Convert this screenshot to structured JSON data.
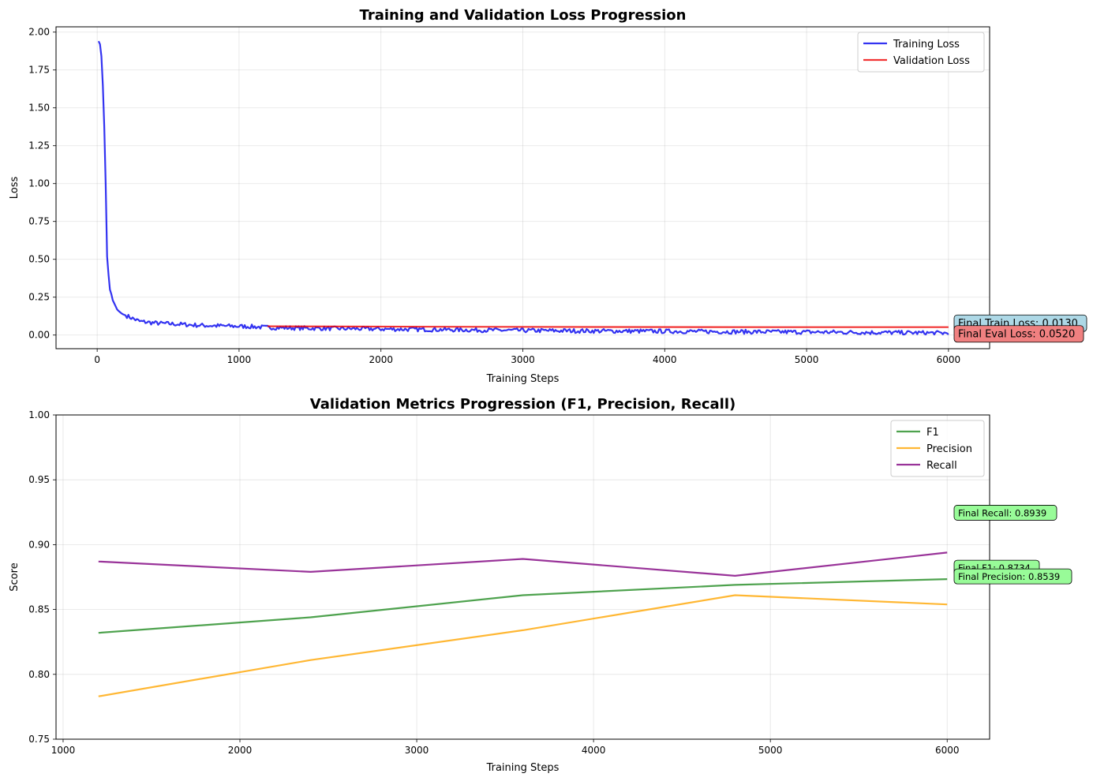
{
  "chart_data": [
    {
      "type": "line",
      "title": "Training and Validation Loss Progression",
      "xlabel": "Training Steps",
      "ylabel": "Loss",
      "xlim": [
        -290,
        6290
      ],
      "ylim": [
        -0.09,
        2.035
      ],
      "xticks": [
        0,
        1000,
        2000,
        3000,
        4000,
        5000,
        6000
      ],
      "xtick_labels": [
        "0",
        "1000",
        "2000",
        "3000",
        "4000",
        "5000",
        "6000"
      ],
      "yticks": [
        0.0,
        0.25,
        0.5,
        0.75,
        1.0,
        1.25,
        1.5,
        1.75,
        2.0
      ],
      "ytick_labels": [
        "0.00",
        "0.25",
        "0.50",
        "0.75",
        "1.00",
        "1.25",
        "1.50",
        "1.75",
        "2.00"
      ],
      "grid": true,
      "legend_position": "top-right",
      "series": [
        {
          "name": "Training Loss",
          "color": "#0000ee",
          "x": [
            10,
            20,
            30,
            40,
            50,
            60,
            70,
            80,
            90,
            100,
            110,
            120,
            130,
            140,
            150,
            175,
            200,
            250,
            300,
            350,
            400,
            500,
            600,
            700,
            800,
            900,
            1000,
            1100,
            1200,
            1500,
            2000,
            2500,
            3000,
            3500,
            4000,
            4500,
            5000,
            5500,
            6000
          ],
          "y": [
            1.94,
            1.92,
            1.84,
            1.65,
            1.38,
            1.0,
            0.52,
            0.4,
            0.3,
            0.27,
            0.23,
            0.21,
            0.19,
            0.17,
            0.16,
            0.14,
            0.13,
            0.11,
            0.09,
            0.085,
            0.08,
            0.075,
            0.07,
            0.065,
            0.062,
            0.06,
            0.058,
            0.055,
            0.05,
            0.045,
            0.04,
            0.035,
            0.03,
            0.027,
            0.025,
            0.022,
            0.02,
            0.017,
            0.013
          ]
        },
        {
          "name": "Validation Loss",
          "color": "#ee0000",
          "x": [
            1200,
            2400,
            3600,
            4800,
            6000
          ],
          "y": [
            0.058,
            0.055,
            0.053,
            0.052,
            0.052
          ]
        }
      ],
      "annotations": [
        {
          "text": "Final Train Loss: 0.0130",
          "bg": "#add8e6"
        },
        {
          "text": "Final Eval Loss: 0.0520",
          "bg": "#f08080"
        }
      ]
    },
    {
      "type": "line",
      "title": "Validation Metrics Progression (F1, Precision, Recall)",
      "xlabel": "Training Steps",
      "ylabel": "Score",
      "xlim": [
        960,
        6240
      ],
      "ylim": [
        0.75,
        1.0
      ],
      "xticks": [
        1000,
        2000,
        3000,
        4000,
        5000,
        6000
      ],
      "xtick_labels": [
        "1000",
        "2000",
        "3000",
        "4000",
        "5000",
        "6000"
      ],
      "yticks": [
        0.75,
        0.8,
        0.85,
        0.9,
        0.95,
        1.0
      ],
      "ytick_labels": [
        "0.75",
        "0.80",
        "0.85",
        "0.90",
        "0.95",
        "1.00"
      ],
      "grid": true,
      "legend_position": "top-right",
      "series": [
        {
          "name": "F1",
          "color": "#228b22",
          "x": [
            1200,
            2400,
            3600,
            4800,
            6000
          ],
          "y": [
            0.832,
            0.844,
            0.861,
            0.869,
            0.8734
          ]
        },
        {
          "name": "Precision",
          "color": "#ffa500",
          "x": [
            1200,
            2400,
            3600,
            4800,
            6000
          ],
          "y": [
            0.783,
            0.811,
            0.834,
            0.861,
            0.8539
          ]
        },
        {
          "name": "Recall",
          "color": "#800080",
          "x": [
            1200,
            2400,
            3600,
            4800,
            6000
          ],
          "y": [
            0.887,
            0.879,
            0.889,
            0.876,
            0.8939
          ]
        }
      ],
      "annotations": [
        {
          "text": "Final Recall: 0.8939",
          "bg": "#98fb98"
        },
        {
          "text": "Final F1: 0.8734",
          "bg": "#98fb98"
        },
        {
          "text": "Final Precision: 0.8539",
          "bg": "#98fb98"
        }
      ]
    }
  ]
}
